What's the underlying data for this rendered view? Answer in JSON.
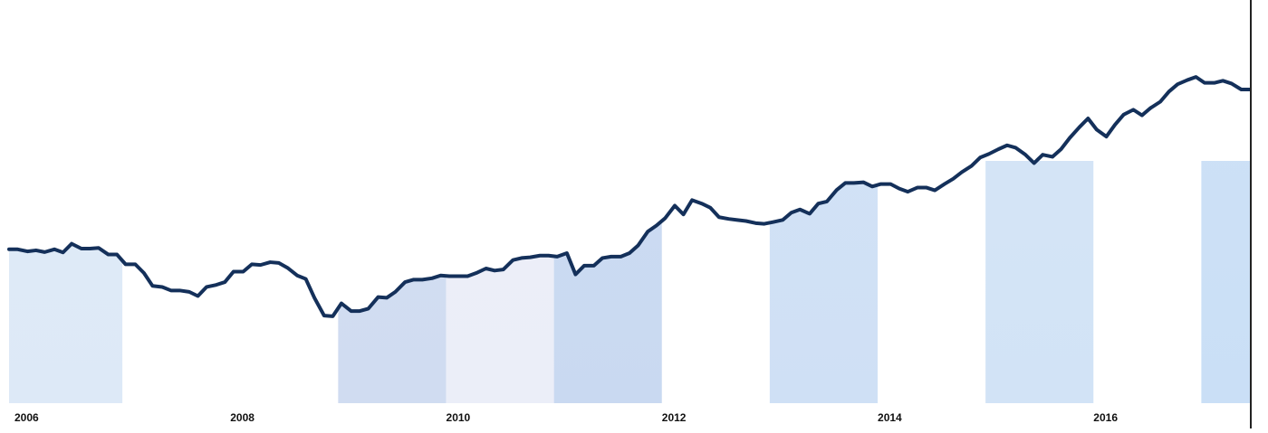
{
  "chart_data": {
    "type": "area",
    "title": "",
    "xlabel": "",
    "ylabel": "",
    "xlim": [
      2006.0,
      2017.5
    ],
    "ylim": [
      0,
      100
    ],
    "grid": false,
    "legend": "none",
    "x_ticks": [
      2006,
      2008,
      2010,
      2012,
      2014,
      2016
    ],
    "x_tick_labels": [
      "2006",
      "2008",
      "2010",
      "2012",
      "2014",
      "2016"
    ],
    "shaded_bands": [
      {
        "x0": 2006.0,
        "x1": 2007.05,
        "color": "#dde9f7"
      },
      {
        "x0": 2009.05,
        "x1": 2010.05,
        "color": "#d0dcf1"
      },
      {
        "x0": 2010.05,
        "x1": 2011.05,
        "color": "#ebeef8"
      },
      {
        "x0": 2011.05,
        "x1": 2012.05,
        "color": "#c9d9f1"
      },
      {
        "x0": 2013.05,
        "x1": 2014.05,
        "color": "#cfe0f5"
      },
      {
        "x0": 2015.05,
        "x1": 2016.05,
        "color": "#d2e3f6"
      },
      {
        "x0": 2017.05,
        "x1": 2017.5,
        "color": "#cadff6"
      }
    ],
    "series": [
      {
        "color": "#14305a",
        "points": [
          [
            2006.0,
            44.1
          ],
          [
            2006.08,
            44.1
          ],
          [
            2006.17,
            43.5
          ],
          [
            2006.25,
            43.8
          ],
          [
            2006.33,
            43.3
          ],
          [
            2006.42,
            44.1
          ],
          [
            2006.5,
            43.2
          ],
          [
            2006.58,
            45.7
          ],
          [
            2006.67,
            44.3
          ],
          [
            2006.75,
            44.3
          ],
          [
            2006.83,
            44.5
          ],
          [
            2006.92,
            42.6
          ],
          [
            2007.0,
            42.6
          ],
          [
            2007.08,
            39.8
          ],
          [
            2007.17,
            39.8
          ],
          [
            2007.25,
            37.3
          ],
          [
            2007.33,
            33.6
          ],
          [
            2007.42,
            33.3
          ],
          [
            2007.5,
            32.3
          ],
          [
            2007.58,
            32.3
          ],
          [
            2007.67,
            31.9
          ],
          [
            2007.75,
            30.7
          ],
          [
            2007.83,
            33.3
          ],
          [
            2007.92,
            33.9
          ],
          [
            2008.0,
            34.7
          ],
          [
            2008.08,
            37.7
          ],
          [
            2008.17,
            37.7
          ],
          [
            2008.25,
            39.8
          ],
          [
            2008.33,
            39.6
          ],
          [
            2008.42,
            40.4
          ],
          [
            2008.5,
            40.2
          ],
          [
            2008.58,
            38.8
          ],
          [
            2008.67,
            36.6
          ],
          [
            2008.75,
            35.6
          ],
          [
            2008.83,
            30.2
          ],
          [
            2008.92,
            25.1
          ],
          [
            2009.0,
            24.9
          ],
          [
            2009.08,
            28.6
          ],
          [
            2009.17,
            26.4
          ],
          [
            2009.25,
            26.4
          ],
          [
            2009.33,
            27.1
          ],
          [
            2009.42,
            30.4
          ],
          [
            2009.5,
            30.2
          ],
          [
            2009.58,
            31.9
          ],
          [
            2009.67,
            34.7
          ],
          [
            2009.75,
            35.4
          ],
          [
            2009.83,
            35.4
          ],
          [
            2009.92,
            35.8
          ],
          [
            2010.0,
            36.6
          ],
          [
            2010.08,
            36.4
          ],
          [
            2010.17,
            36.4
          ],
          [
            2010.25,
            36.4
          ],
          [
            2010.33,
            37.3
          ],
          [
            2010.42,
            38.6
          ],
          [
            2010.5,
            38.0
          ],
          [
            2010.58,
            38.3
          ],
          [
            2010.67,
            41.0
          ],
          [
            2010.75,
            41.6
          ],
          [
            2010.83,
            41.8
          ],
          [
            2010.92,
            42.3
          ],
          [
            2011.0,
            42.3
          ],
          [
            2011.08,
            42.0
          ],
          [
            2011.17,
            43.0
          ],
          [
            2011.25,
            36.9
          ],
          [
            2011.33,
            39.4
          ],
          [
            2011.42,
            39.4
          ],
          [
            2011.5,
            41.6
          ],
          [
            2011.58,
            42.0
          ],
          [
            2011.67,
            42.0
          ],
          [
            2011.75,
            43.0
          ],
          [
            2011.83,
            45.2
          ],
          [
            2011.92,
            49.2
          ],
          [
            2012.0,
            50.9
          ],
          [
            2012.08,
            53.0
          ],
          [
            2012.17,
            56.6
          ],
          [
            2012.25,
            54.1
          ],
          [
            2012.33,
            58.2
          ],
          [
            2012.42,
            57.2
          ],
          [
            2012.5,
            56.0
          ],
          [
            2012.58,
            53.3
          ],
          [
            2012.67,
            52.8
          ],
          [
            2012.75,
            52.5
          ],
          [
            2012.83,
            52.2
          ],
          [
            2012.92,
            51.6
          ],
          [
            2013.0,
            51.4
          ],
          [
            2013.08,
            51.9
          ],
          [
            2013.17,
            52.5
          ],
          [
            2013.25,
            54.6
          ],
          [
            2013.33,
            55.5
          ],
          [
            2013.42,
            54.3
          ],
          [
            2013.5,
            57.2
          ],
          [
            2013.58,
            57.8
          ],
          [
            2013.67,
            61.1
          ],
          [
            2013.75,
            63.1
          ],
          [
            2013.83,
            63.1
          ],
          [
            2013.92,
            63.3
          ],
          [
            2014.0,
            62.1
          ],
          [
            2014.08,
            62.8
          ],
          [
            2014.17,
            62.8
          ],
          [
            2014.25,
            61.5
          ],
          [
            2014.33,
            60.6
          ],
          [
            2014.42,
            61.8
          ],
          [
            2014.5,
            61.8
          ],
          [
            2014.58,
            61.0
          ],
          [
            2014.67,
            62.8
          ],
          [
            2014.75,
            64.3
          ],
          [
            2014.83,
            66.2
          ],
          [
            2014.92,
            68.0
          ],
          [
            2015.0,
            70.4
          ],
          [
            2015.08,
            71.4
          ],
          [
            2015.17,
            72.8
          ],
          [
            2015.25,
            73.9
          ],
          [
            2015.33,
            73.2
          ],
          [
            2015.42,
            71.2
          ],
          [
            2015.5,
            68.8
          ],
          [
            2015.58,
            71.2
          ],
          [
            2015.67,
            70.6
          ],
          [
            2015.75,
            72.8
          ],
          [
            2015.83,
            76.0
          ],
          [
            2015.92,
            79.1
          ],
          [
            2016.0,
            81.6
          ],
          [
            2016.08,
            78.4
          ],
          [
            2016.17,
            76.4
          ],
          [
            2016.25,
            79.8
          ],
          [
            2016.33,
            82.7
          ],
          [
            2016.42,
            84.1
          ],
          [
            2016.5,
            82.5
          ],
          [
            2016.58,
            84.6
          ],
          [
            2016.67,
            86.4
          ],
          [
            2016.75,
            89.3
          ],
          [
            2016.83,
            91.4
          ],
          [
            2016.92,
            92.6
          ],
          [
            2017.0,
            93.5
          ],
          [
            2017.08,
            91.8
          ],
          [
            2017.17,
            91.8
          ],
          [
            2017.25,
            92.4
          ],
          [
            2017.33,
            91.6
          ],
          [
            2017.42,
            89.9
          ],
          [
            2017.5,
            89.9
          ]
        ]
      }
    ]
  }
}
